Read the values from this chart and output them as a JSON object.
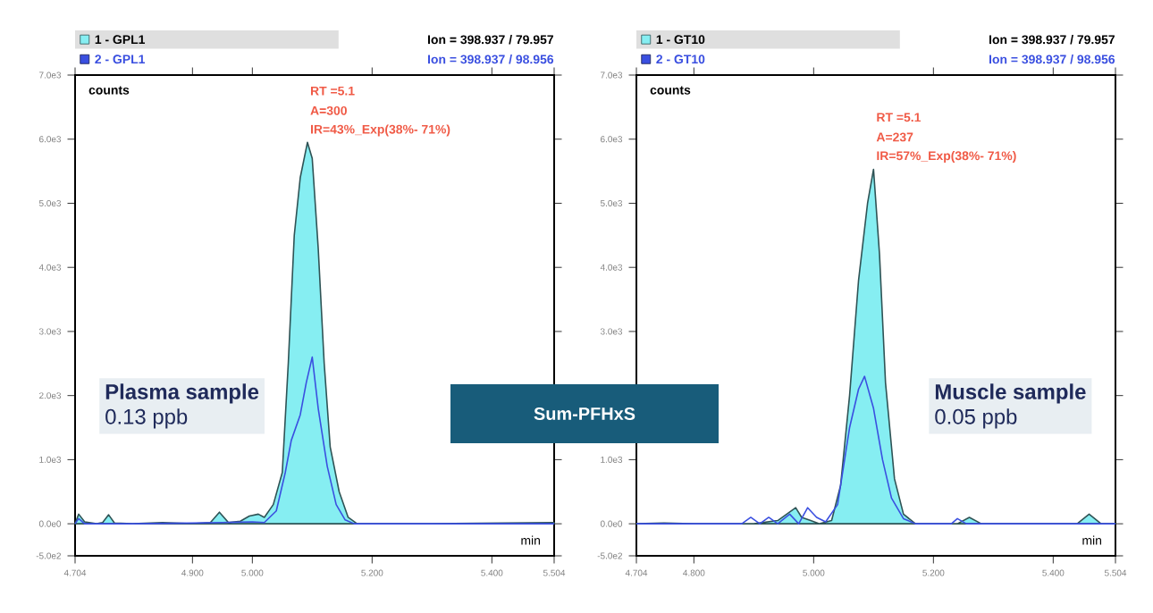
{
  "chart_data": [
    {
      "type": "area",
      "xlabel": "min",
      "ylabel": "counts",
      "legend": "top",
      "xlim": [
        4.704,
        5.504
      ],
      "ylim": [
        -500,
        7000
      ],
      "xticks": [
        {
          "value": 4.704,
          "label": "4.704"
        },
        {
          "value": 4.9,
          "label": "4.900"
        },
        {
          "value": 5.0,
          "label": "5.000"
        },
        {
          "value": 5.2,
          "label": "5.200"
        },
        {
          "value": 5.4,
          "label": "5.400"
        },
        {
          "value": 5.504,
          "label": "5.504"
        }
      ],
      "yticks": [
        {
          "value": -500,
          "label": "-5.0e2"
        },
        {
          "value": 0,
          "label": "0.0e0"
        },
        {
          "value": 1000,
          "label": "1.0e3"
        },
        {
          "value": 2000,
          "label": "2.0e3"
        },
        {
          "value": 3000,
          "label": "3.0e3"
        },
        {
          "value": 4000,
          "label": "4.0e3"
        },
        {
          "value": 5000,
          "label": "5.0e3"
        },
        {
          "value": 6000,
          "label": "6.0e3"
        },
        {
          "value": 7000,
          "label": "7.0e3"
        }
      ],
      "annotations": [
        "RT =5.1",
        "A=300",
        "IR=43%_Exp(38%- 71%)",
        "Plasma sample",
        "0.13 ppb",
        "Ion = 398.937 / 79.957",
        "Ion = 398.937 / 98.956"
      ],
      "series": [
        {
          "name": "1 - GPL1",
          "color": "#86eef2",
          "x": [
            4.704,
            4.71,
            4.72,
            4.74,
            4.75,
            4.76,
            4.77,
            4.8,
            4.85,
            4.9,
            4.93,
            4.945,
            4.96,
            4.98,
            4.995,
            5.01,
            5.02,
            5.035,
            5.05,
            5.06,
            5.07,
            5.08,
            5.092,
            5.1,
            5.11,
            5.12,
            5.13,
            5.145,
            5.16,
            5.175,
            5.3,
            5.504
          ],
          "values": [
            0,
            150,
            30,
            0,
            20,
            140,
            10,
            0,
            20,
            0,
            20,
            180,
            20,
            40,
            120,
            150,
            100,
            300,
            800,
            2500,
            4500,
            5400,
            5950,
            5700,
            4300,
            2500,
            1200,
            500,
            100,
            0,
            0,
            20
          ]
        },
        {
          "name": "2 - GPL1",
          "type": "line",
          "color": "#3a4fe0",
          "x": [
            4.704,
            4.71,
            4.72,
            4.8,
            4.9,
            4.95,
            5.0,
            5.02,
            5.04,
            5.055,
            5.065,
            5.08,
            5.09,
            5.1,
            5.11,
            5.125,
            5.14,
            5.155,
            5.17,
            5.3,
            5.504
          ],
          "values": [
            0,
            80,
            0,
            0,
            10,
            20,
            30,
            20,
            200,
            800,
            1300,
            1700,
            2200,
            2600,
            1800,
            900,
            300,
            60,
            0,
            0,
            0
          ]
        }
      ]
    },
    {
      "type": "area",
      "title": "Sum-PFHxS",
      "xlabel": "min",
      "ylabel": "counts",
      "legend": "top",
      "xlim": [
        4.704,
        5.504
      ],
      "ylim": [
        -500,
        7000
      ],
      "xticks": [
        {
          "value": 4.704,
          "label": "4.704"
        },
        {
          "value": 4.8,
          "label": "4.800"
        },
        {
          "value": 5.0,
          "label": "5.000"
        },
        {
          "value": 5.2,
          "label": "5.200"
        },
        {
          "value": 5.4,
          "label": "5.400"
        },
        {
          "value": 5.504,
          "label": "5.504"
        }
      ],
      "yticks": [
        {
          "value": -500,
          "label": "-5.0e2"
        },
        {
          "value": 0,
          "label": "0.0e0"
        },
        {
          "value": 1000,
          "label": "1.0e3"
        },
        {
          "value": 2000,
          "label": null
        },
        {
          "value": 3000,
          "label": "3.0e3"
        },
        {
          "value": 4000,
          "label": "4.0e3"
        },
        {
          "value": 5000,
          "label": "5.0e3"
        },
        {
          "value": 6000,
          "label": "6.0e3"
        },
        {
          "value": 7000,
          "label": "7.0e3"
        }
      ],
      "annotations": [
        "RT =5.1",
        "A=237",
        "IR=57%_Exp(38%- 71%)",
        "Muscle sample",
        "0.05 ppb",
        "Ion = 398.937 / 79.957",
        "Ion = 398.937 / 98.956"
      ],
      "series": [
        {
          "name": "1 - GT10",
          "color": "#86eef2",
          "x": [
            4.704,
            4.75,
            4.8,
            4.9,
            4.94,
            4.955,
            4.97,
            4.98,
            4.995,
            5.01,
            5.03,
            5.045,
            5.06,
            5.075,
            5.09,
            5.1,
            5.11,
            5.12,
            5.135,
            5.15,
            5.17,
            5.24,
            5.26,
            5.28,
            5.44,
            5.46,
            5.48,
            5.504
          ],
          "values": [
            0,
            10,
            0,
            0,
            50,
            150,
            250,
            100,
            50,
            0,
            50,
            600,
            2000,
            3800,
            5000,
            5530,
            4200,
            2200,
            700,
            150,
            0,
            0,
            100,
            0,
            0,
            150,
            0,
            0
          ]
        },
        {
          "name": "2 - GT10",
          "type": "line",
          "color": "#3a4fe0",
          "x": [
            4.704,
            4.88,
            4.895,
            4.91,
            4.925,
            4.94,
            4.96,
            4.975,
            4.99,
            5.005,
            5.02,
            5.04,
            5.06,
            5.075,
            5.085,
            5.1,
            5.115,
            5.13,
            5.15,
            5.17,
            5.23,
            5.24,
            5.255,
            5.504
          ],
          "values": [
            0,
            0,
            100,
            0,
            100,
            0,
            150,
            0,
            250,
            100,
            30,
            300,
            1500,
            2100,
            2300,
            1800,
            1000,
            400,
            80,
            0,
            0,
            80,
            0,
            0
          ]
        }
      ]
    }
  ]
}
